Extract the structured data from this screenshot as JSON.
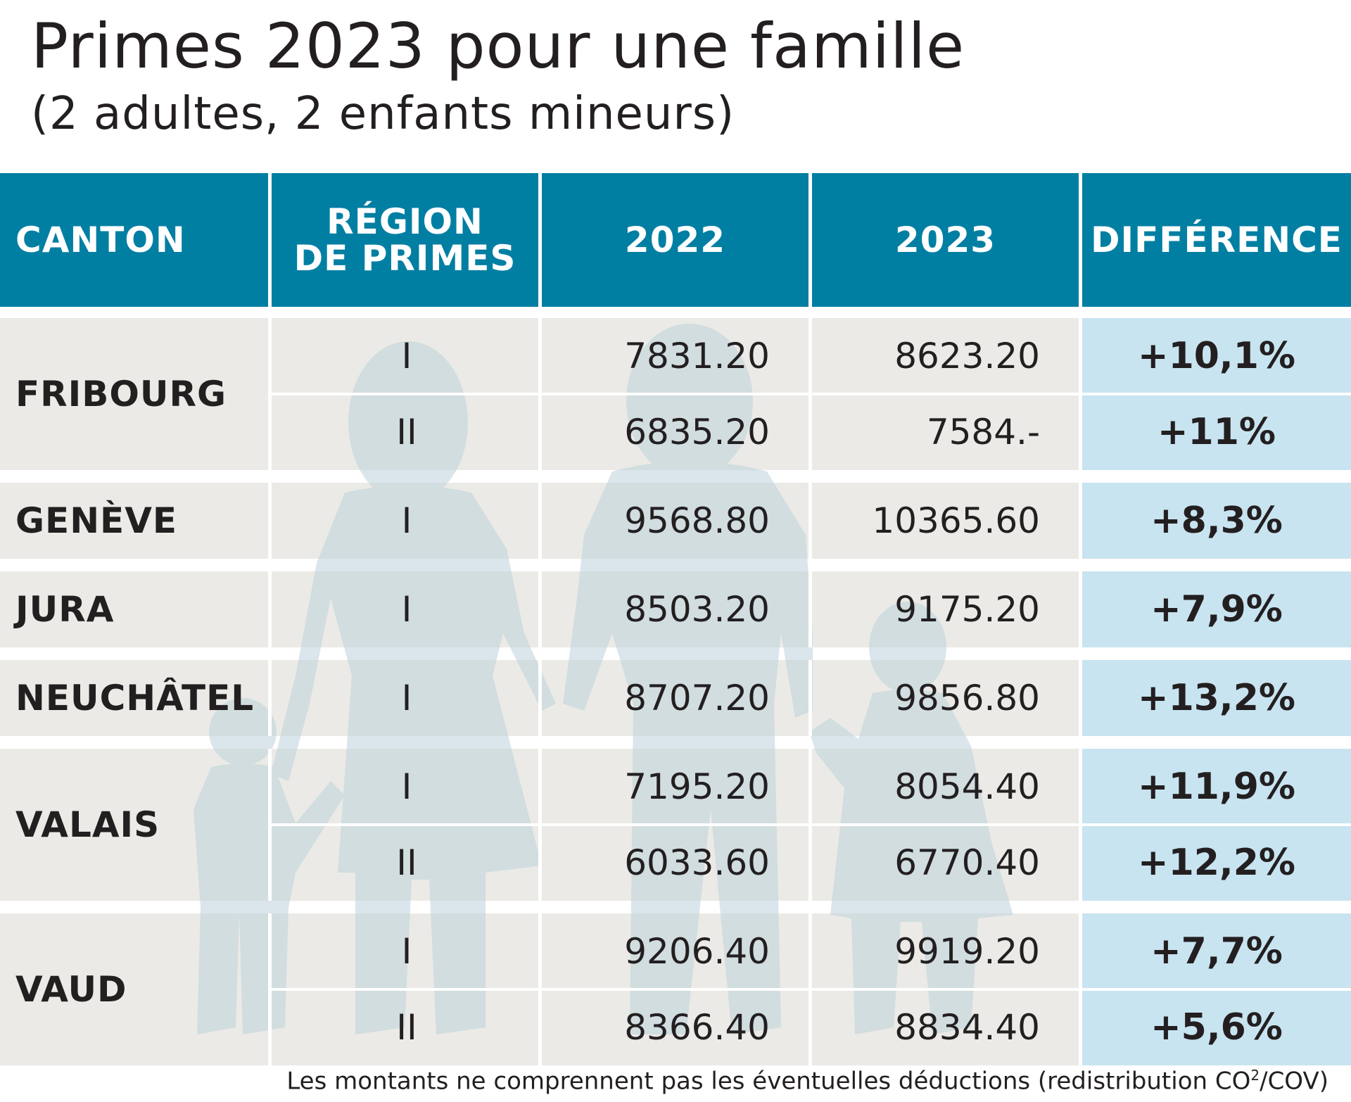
{
  "title": "Primes 2023 pour une famille",
  "subtitle": "(2 adultes, 2 enfants mineurs)",
  "colors": {
    "header_bg": "#017fa3",
    "row_bg": "#ebeae6",
    "diff_bg": "#c8e4f0",
    "silhouette": "#bcd3db"
  },
  "chart_data": {
    "type": "table",
    "columns": [
      "CANTON",
      "RÉGION\nDE PRIMES",
      "2022",
      "2023",
      "DIFFÉRENCE"
    ],
    "groups": [
      {
        "canton": "FRIBOURG",
        "rows": [
          {
            "region": "I",
            "y2022": "7831.20",
            "y2023": "8623.20",
            "diff": "+10,1%"
          },
          {
            "region": "II",
            "y2022": "6835.20",
            "y2023": "7584.-",
            "diff": "+11%"
          }
        ]
      },
      {
        "canton": "GENÈVE",
        "rows": [
          {
            "region": "I",
            "y2022": "9568.80",
            "y2023": "10365.60",
            "diff": "+8,3%"
          }
        ]
      },
      {
        "canton": "JURA",
        "rows": [
          {
            "region": "I",
            "y2022": "8503.20",
            "y2023": "9175.20",
            "diff": "+7,9%"
          }
        ]
      },
      {
        "canton": "NEUCHÂTEL",
        "rows": [
          {
            "region": "I",
            "y2022": "8707.20",
            "y2023": "9856.80",
            "diff": "+13,2%"
          }
        ]
      },
      {
        "canton": "VALAIS",
        "rows": [
          {
            "region": "I",
            "y2022": "7195.20",
            "y2023": "8054.40",
            "diff": "+11,9%"
          },
          {
            "region": "II",
            "y2022": "6033.60",
            "y2023": "6770.40",
            "diff": "+12,2%"
          }
        ]
      },
      {
        "canton": "VAUD",
        "rows": [
          {
            "region": "I",
            "y2022": "9206.40",
            "y2023": "9919.20",
            "diff": "+7,7%"
          },
          {
            "region": "II",
            "y2022": "8366.40",
            "y2023": "8834.40",
            "diff": "+5,6%"
          }
        ]
      }
    ]
  },
  "footnote": {
    "text": "Les montants ne comprennent pas les éventuelles déductions (redistribution CO",
    "superscript": "2",
    "suffix": "/COV)"
  }
}
